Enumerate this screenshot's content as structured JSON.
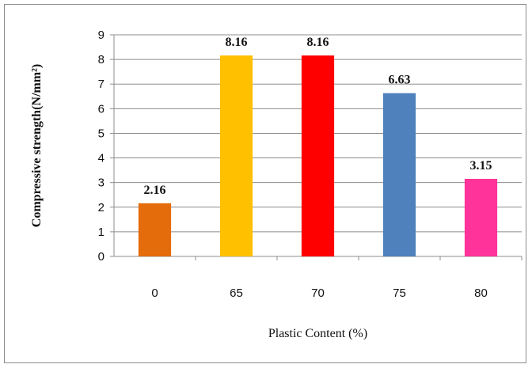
{
  "chart_data": {
    "type": "bar",
    "title": "",
    "xlabel": "Plastic Content (%)",
    "ylabel": "Compressive strength(N/mm²)",
    "categories": [
      "0",
      "65",
      "70",
      "75",
      "80"
    ],
    "values": [
      2.16,
      8.16,
      8.16,
      6.63,
      3.15
    ],
    "data_labels": [
      "2.16",
      "8.16",
      "8.16",
      "6.63",
      "3.15"
    ],
    "bar_colors": [
      "#E46C0A",
      "#FFC000",
      "#FF0000",
      "#4F81BD",
      "#FF3399"
    ],
    "ylim": [
      0,
      9
    ],
    "yticks": [
      "0",
      "1",
      "2",
      "3",
      "4",
      "5",
      "6",
      "7",
      "8",
      "9"
    ],
    "grid": true,
    "legend": "none"
  }
}
